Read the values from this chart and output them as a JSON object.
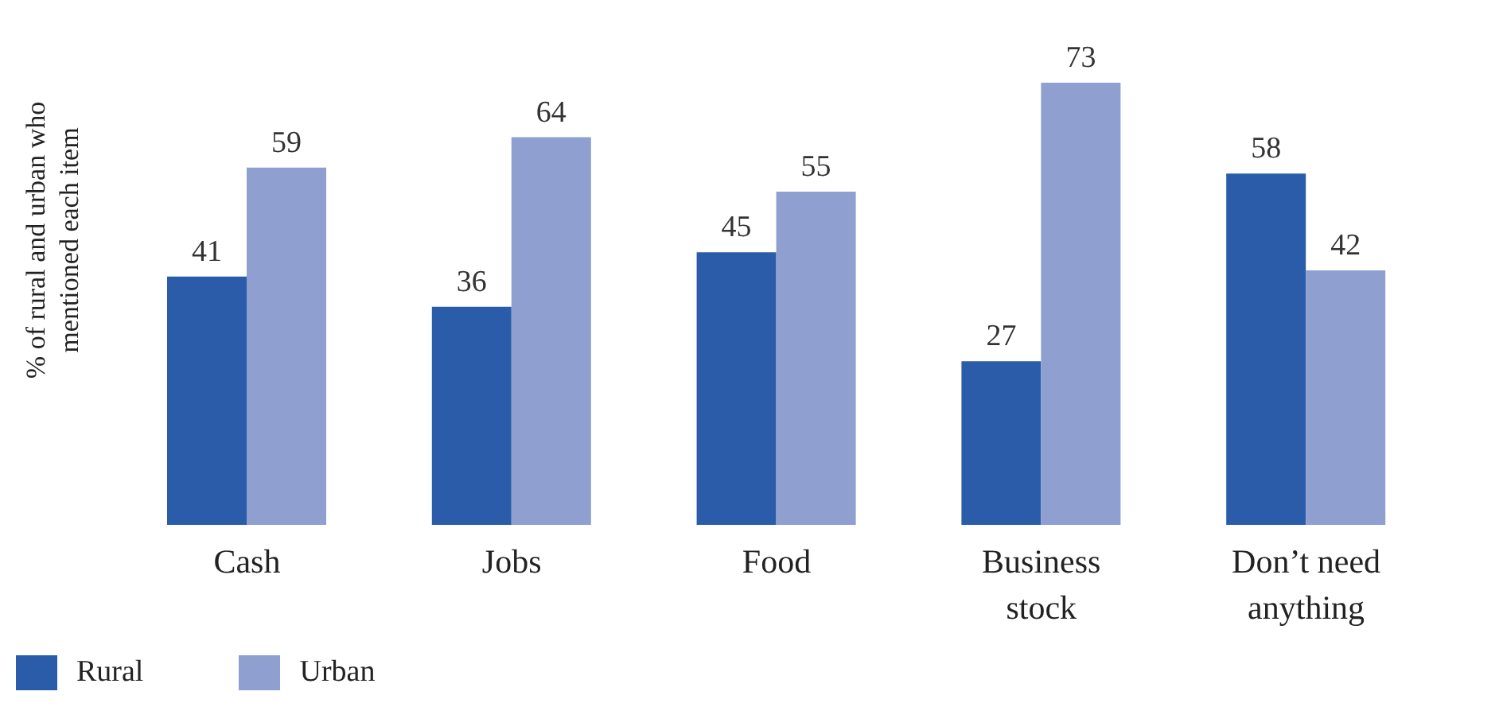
{
  "chart_data": {
    "type": "bar",
    "ylabel": "% of rural and urban who mentioned each item",
    "categories": [
      "Cash",
      "Jobs",
      "Food",
      "Business stock",
      "Don’t need anything"
    ],
    "series": [
      {
        "name": "Rural",
        "color": "#2a5caa",
        "values": [
          41,
          36,
          45,
          27,
          58
        ]
      },
      {
        "name": "Urban",
        "color": "#8e9fd0",
        "values": [
          59,
          64,
          55,
          73,
          42
        ]
      }
    ],
    "data_labels": true,
    "legend": "bottom left",
    "grid": false
  }
}
